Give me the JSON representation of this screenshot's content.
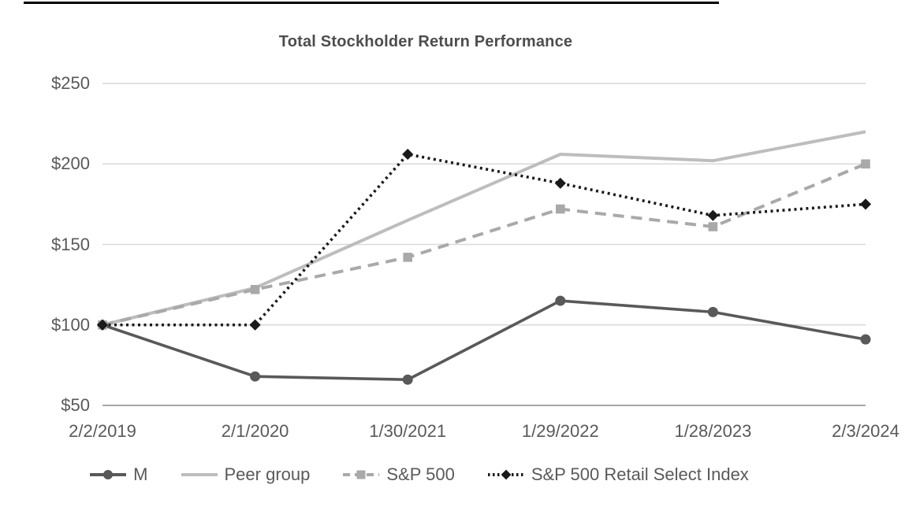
{
  "chart_data": {
    "type": "line",
    "title": "Total Stockholder Return Performance",
    "categories": [
      "2/2/2019",
      "2/1/2020",
      "1/30/2021",
      "1/29/2022",
      "1/28/2023",
      "2/3/2024"
    ],
    "series": [
      {
        "name": "M",
        "values": [
          100,
          68,
          66,
          115,
          108,
          91
        ],
        "color": "#595959",
        "style": "solid",
        "marker": "circle"
      },
      {
        "name": "Peer group",
        "values": [
          100,
          123,
          165,
          206,
          202,
          220
        ],
        "color": "#bdbdbd",
        "style": "solid",
        "marker": "none"
      },
      {
        "name": "S&P 500",
        "values": [
          100,
          122,
          142,
          172,
          161,
          200
        ],
        "color": "#a9a9a9",
        "style": "dashed",
        "marker": "square"
      },
      {
        "name": "S&P 500 Retail Select Index",
        "values": [
          100,
          100,
          206,
          188,
          168,
          175
        ],
        "color": "#1a1a1a",
        "style": "dotted",
        "marker": "diamond"
      }
    ],
    "ylabel_ticks": [
      "$250",
      "$200",
      "$150",
      "$100",
      "$50"
    ],
    "ytick_values": [
      250,
      200,
      150,
      100,
      50
    ],
    "ylim": [
      50,
      250
    ],
    "xlabel": "",
    "ylabel": "",
    "grid": true,
    "legend_position": "bottom"
  },
  "colors": {
    "grid": "#d9d9d9",
    "axis_line": "#a6a6a6",
    "text": "#595959",
    "title_text": "#4d4d4d",
    "background": "#ffffff",
    "top_rule": "#000000"
  }
}
